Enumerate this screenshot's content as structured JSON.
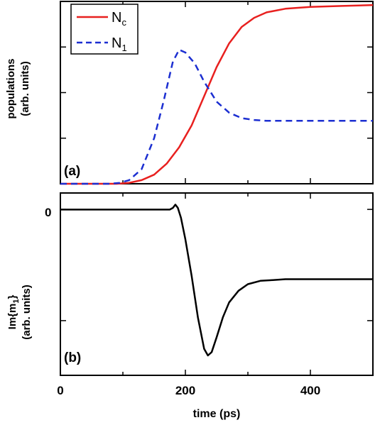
{
  "chart_data": [
    {
      "type": "line",
      "panel_label": "(a)",
      "ylabel_line1": "populations",
      "ylabel_line2": "(arb. units)",
      "xlim": [
        0,
        500
      ],
      "ylim": [
        0,
        1
      ],
      "grid": false,
      "legend_position": "top-left",
      "series": [
        {
          "name": "N",
          "name_sub": "c",
          "color": "#e8201f",
          "style": "solid",
          "x": [
            0,
            90,
            110,
            130,
            150,
            170,
            190,
            210,
            230,
            250,
            270,
            290,
            310,
            330,
            360,
            400,
            450,
            500
          ],
          "y": [
            0,
            0,
            0.005,
            0.02,
            0.05,
            0.11,
            0.2,
            0.32,
            0.48,
            0.64,
            0.77,
            0.86,
            0.91,
            0.94,
            0.96,
            0.97,
            0.975,
            0.98
          ]
        },
        {
          "name": "N",
          "name_sub": "1",
          "color": "#1c2fd1",
          "style": "dashed",
          "x": [
            0,
            80,
            95,
            110,
            130,
            150,
            165,
            180,
            190,
            200,
            215,
            230,
            250,
            270,
            290,
            310,
            330,
            360,
            400,
            450,
            500
          ],
          "y": [
            0,
            0,
            0.005,
            0.02,
            0.08,
            0.25,
            0.45,
            0.67,
            0.735,
            0.72,
            0.66,
            0.56,
            0.45,
            0.39,
            0.36,
            0.35,
            0.345,
            0.345,
            0.345,
            0.345,
            0.345
          ]
        }
      ]
    },
    {
      "type": "line",
      "panel_label": "(b)",
      "ylabel_line1": "Im{m",
      "ylabel_line1_sub": "1",
      "ylabel_line1_end": "}",
      "ylabel_line2": "(arb. units)",
      "y_tick_label": "0",
      "xlabel": "time (ps)",
      "x_ticks": [
        0,
        200,
        400
      ],
      "xlim": [
        0,
        500
      ],
      "ylim": [
        -1,
        0.1
      ],
      "grid": false,
      "series": [
        {
          "name": "",
          "color": "#000000",
          "style": "solid",
          "x": [
            0,
            100,
            175,
            180,
            184,
            188,
            193,
            200,
            210,
            220,
            230,
            236,
            242,
            250,
            260,
            270,
            285,
            300,
            320,
            340,
            360,
            380,
            420,
            460,
            500
          ],
          "y": [
            0,
            0,
            0,
            0.01,
            0.03,
            0.01,
            -0.05,
            -0.18,
            -0.4,
            -0.65,
            -0.84,
            -0.88,
            -0.86,
            -0.77,
            -0.65,
            -0.56,
            -0.49,
            -0.45,
            -0.43,
            -0.425,
            -0.42,
            -0.42,
            -0.42,
            -0.42,
            -0.42
          ]
        }
      ]
    }
  ]
}
